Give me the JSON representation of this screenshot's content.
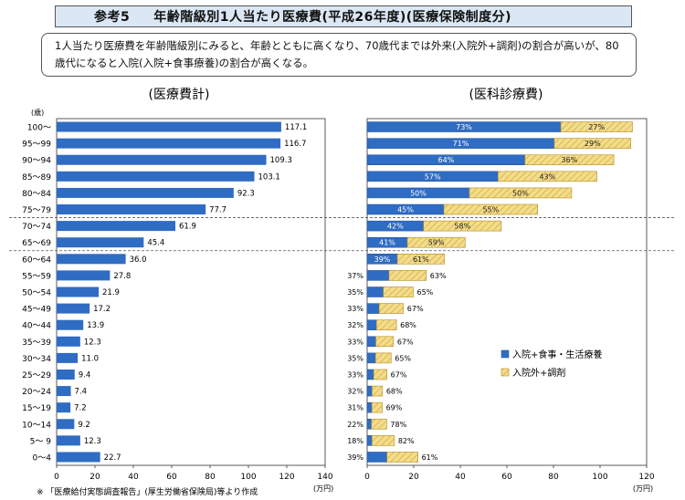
{
  "header": {
    "label": "参考5",
    "title": "年齢階級別1人当たり医療費(平成26年度)(医療保険制度分)",
    "summary": "1人当たり医療費を年齢階級別にみると、年齢とともに高くなり、70歳代までは外来(入院外+調剤)の割合が高いが、80歳代になると入院(入院+食事療養)の割合が高くなる。"
  },
  "colors": {
    "blue": "#2f6cc3",
    "hatch": "#f3dc8a",
    "hatch_line": "#c9a23a"
  },
  "chart_data": [
    {
      "type": "bar",
      "orientation": "horizontal",
      "title": "(医療費計)",
      "ylabel": "(歳)",
      "xlabel": "(万円)",
      "xlim": [
        0,
        140
      ],
      "xticks": [
        0,
        20,
        40,
        60,
        80,
        100,
        120,
        140
      ],
      "categories": [
        "100〜",
        "95〜99",
        "90〜94",
        "85〜89",
        "80〜84",
        "75〜79",
        "70〜74",
        "65〜69",
        "60〜64",
        "55〜59",
        "50〜54",
        "45〜49",
        "40〜44",
        "35〜39",
        "30〜34",
        "25〜29",
        "20〜24",
        "15〜19",
        "10〜14",
        "5〜 9",
        "0〜4"
      ],
      "values": [
        117.1,
        116.7,
        109.3,
        103.1,
        92.3,
        77.7,
        61.9,
        45.4,
        36.0,
        27.8,
        21.9,
        17.2,
        13.9,
        12.3,
        11.0,
        9.4,
        7.4,
        7.2,
        9.2,
        12.3,
        22.7
      ],
      "labels": [
        "117.1",
        "116.7",
        "109.3",
        "103.1",
        "92.3",
        "77.7",
        "61.9",
        "45.4",
        "36.0",
        "27.8",
        "21.9",
        "17.2",
        "13.9",
        "12.3",
        "11.0",
        "9.4",
        "7.4",
        "7.2",
        "9.2",
        "12.3",
        "22.7"
      ]
    },
    {
      "type": "bar",
      "orientation": "horizontal",
      "stacked": true,
      "title": "(医科診療費)",
      "xlabel": "(万円)",
      "xlim": [
        0,
        120
      ],
      "xticks": [
        0,
        20,
        40,
        60,
        80,
        100,
        120
      ],
      "categories": [
        "100〜",
        "95〜99",
        "90〜94",
        "85〜89",
        "80〜84",
        "75〜79",
        "70〜74",
        "65〜69",
        "60〜64",
        "55〜59",
        "50〜54",
        "45〜49",
        "40〜44",
        "35〜39",
        "30〜34",
        "25〜29",
        "20〜24",
        "15〜19",
        "10〜14",
        "5〜 9",
        "0〜4"
      ],
      "totals": [
        113.9,
        113.2,
        105.9,
        98.6,
        87.8,
        73.2,
        57.6,
        42.1,
        33.2,
        25.4,
        19.8,
        15.6,
        12.6,
        11.3,
        10.3,
        8.5,
        6.6,
        6.5,
        8.4,
        11.7,
        21.8
      ],
      "series": [
        {
          "name": "入院+食事・生活療養",
          "color": "#2f6cc3",
          "shares": [
            73,
            71,
            64,
            57,
            50,
            45,
            42,
            41,
            39,
            37,
            35,
            33,
            32,
            33,
            35,
            33,
            32,
            31,
            22,
            18,
            39
          ],
          "labels": [
            "73%",
            "71%",
            "64%",
            "57%",
            "50%",
            "45%",
            "42%",
            "41%",
            "39%",
            "37%",
            "35%",
            "33%",
            "32%",
            "33%",
            "35%",
            "33%",
            "32%",
            "31%",
            "22%",
            "18%",
            "39%"
          ]
        },
        {
          "name": "入院外+調剤",
          "color": "#f3dc8a",
          "shares": [
            27,
            29,
            36,
            43,
            50,
            55,
            58,
            59,
            61,
            63,
            65,
            67,
            68,
            67,
            65,
            67,
            68,
            69,
            78,
            82,
            61
          ],
          "labels": [
            "27%",
            "29%",
            "36%",
            "43%",
            "50%",
            "55%",
            "58%",
            "59%",
            "61%",
            "63%",
            "65%",
            "67%",
            "68%",
            "67%",
            "65%",
            "67%",
            "68%",
            "69%",
            "78%",
            "82%",
            "61%"
          ]
        }
      ]
    }
  ],
  "footnote": "※ 「医療給付実態調査報告」(厚生労働省保険局)等より作成"
}
